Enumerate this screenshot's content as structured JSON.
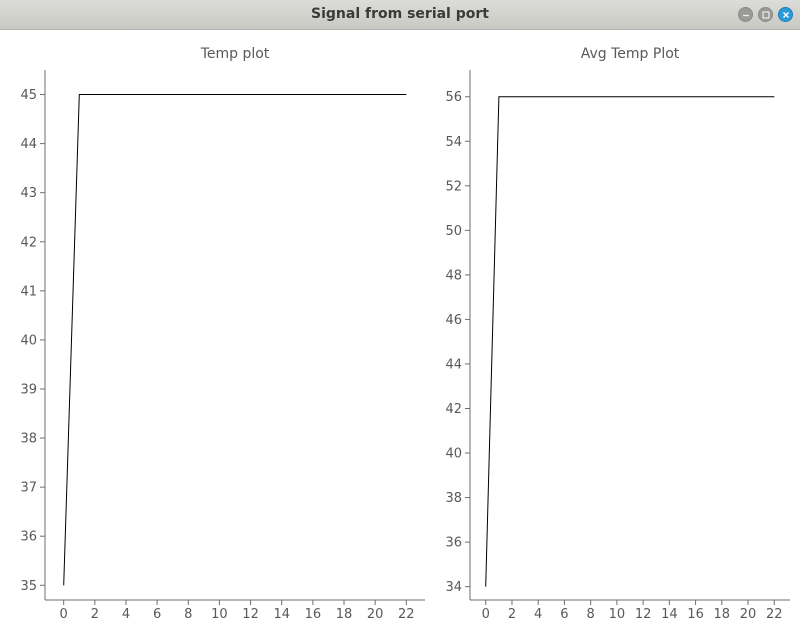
{
  "window": {
    "title": "Signal from serial port"
  },
  "window_controls": [
    {
      "name": "minimize-button",
      "icon": "minimize-icon"
    },
    {
      "name": "maximize-button",
      "icon": "maximize-icon"
    },
    {
      "name": "close-button",
      "icon": "close-icon",
      "color": "#2a9ad8"
    }
  ],
  "chart_data": [
    {
      "type": "line",
      "title": "Temp plot",
      "xlabel": "",
      "ylabel": "",
      "x": [
        0,
        1,
        22
      ],
      "y": [
        35,
        45,
        45
      ],
      "xlim": [
        -1.2,
        23.2
      ],
      "ylim": [
        34.7,
        45.5
      ],
      "xticks": [
        0,
        2,
        4,
        6,
        8,
        10,
        12,
        14,
        16,
        18,
        20,
        22
      ],
      "yticks": [
        35,
        36,
        37,
        38,
        39,
        40,
        41,
        42,
        43,
        44,
        45
      ],
      "grid": false,
      "line_color": "#000000"
    },
    {
      "type": "line",
      "title": "Avg Temp Plot",
      "xlabel": "",
      "ylabel": "",
      "x": [
        0,
        1,
        22
      ],
      "y": [
        34,
        56,
        56
      ],
      "xlim": [
        -1.2,
        23.2
      ],
      "ylim": [
        33.4,
        57.2
      ],
      "xticks": [
        0,
        2,
        4,
        6,
        8,
        10,
        12,
        14,
        16,
        18,
        20,
        22
      ],
      "yticks": [
        34,
        36,
        38,
        40,
        42,
        44,
        46,
        48,
        50,
        52,
        54,
        56
      ],
      "grid": false,
      "line_color": "#000000"
    }
  ]
}
